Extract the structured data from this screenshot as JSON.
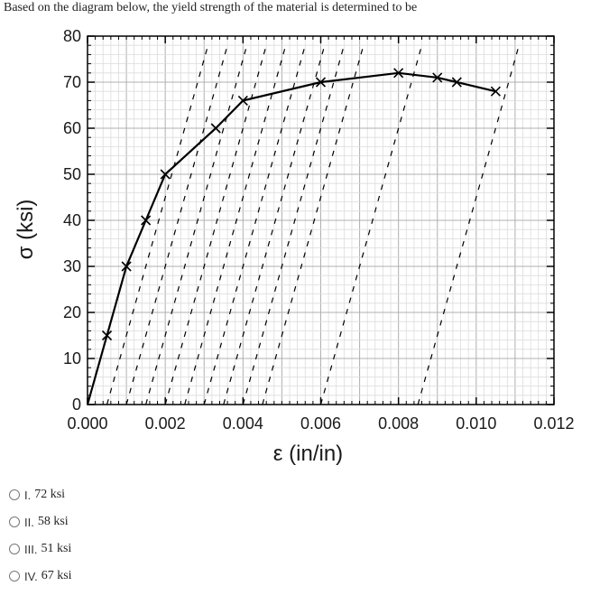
{
  "question": "Based on the diagram below, the yield strength of the material is determined to be",
  "options": [
    {
      "label": "I.",
      "value": "72 ksi"
    },
    {
      "label": "II.",
      "value": "58 ksi"
    },
    {
      "label": "III.",
      "value": "51 ksi"
    },
    {
      "label": "IV.",
      "value": "67 ksi"
    }
  ],
  "chart_data": {
    "type": "line",
    "xlabel": "ε (in/in)",
    "ylabel": "σ (ksi)",
    "xlim": [
      0,
      0.012
    ],
    "ylim": [
      0,
      80
    ],
    "x_ticks": [
      "0.000",
      "0.002",
      "0.004",
      "0.006",
      "0.008",
      "0.010",
      "0.012"
    ],
    "y_ticks": [
      "0",
      "10",
      "20",
      "30",
      "40",
      "50",
      "60",
      "70",
      "80"
    ],
    "grid": true,
    "series": [
      {
        "x": [
          0,
          0.0005,
          0.001,
          0.0015,
          0.002,
          0.0033,
          0.004,
          0.006,
          0.008,
          0.009,
          0.0095,
          0.0105
        ],
        "y": [
          0,
          15,
          30,
          40,
          50,
          60,
          66,
          70,
          72,
          71,
          70,
          68
        ]
      }
    ],
    "dashed_offsets": [
      0.0005,
      0.001,
      0.0015,
      0.002,
      0.0025,
      0.003,
      0.0035,
      0.004,
      0.0045,
      0.006,
      0.0085
    ],
    "colors": {
      "line": "#000000",
      "grid_major": "#b0b0b0",
      "grid_minor": "#dcdcdc"
    }
  }
}
